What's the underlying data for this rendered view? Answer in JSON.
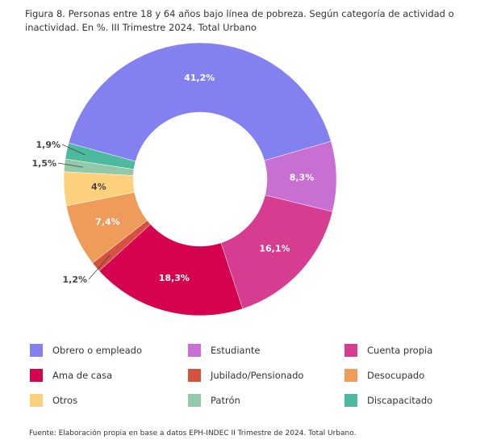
{
  "title": "Figura 8. Personas entre 18 y 64 años bajo línea de pobreza. Según categoría de actividad o inactividad. En %. III Trimestre 2024. Total Urbano",
  "footer": "Fuente: Elaboración propia en base a datos EPH-INDEC II Trimestre de 2024. Total Urbano.",
  "chart_data": {
    "type": "pie",
    "donut": true,
    "title": "Figura 8. Personas entre 18 y 64 años bajo línea de pobreza. Según categoría de actividad o inactividad. En %. III Trimestre 2024. Total Urbano",
    "legend_position": "bottom",
    "categories": [
      "Obrero o empleado",
      "Estudiante",
      "Cuenta propia",
      "Ama de casa",
      "Jubilado/Pensionado",
      "Desocupado",
      "Otros",
      "Patrón",
      "Discapacitado"
    ],
    "values": [
      41.2,
      8.3,
      16.1,
      18.3,
      1.2,
      7.4,
      4,
      1.5,
      1.9
    ],
    "labels": [
      "41,2%",
      "8,3%",
      "16,1%",
      "18,3%",
      "1,2%",
      "7,4%",
      "4%",
      "1,5%",
      "1,9%"
    ],
    "colors": [
      "#8381f0",
      "#c96fd3",
      "#d63c90",
      "#d4024f",
      "#d4523e",
      "#ef9b5a",
      "#fdd17c",
      "#92c9a9",
      "#4db99f"
    ]
  }
}
